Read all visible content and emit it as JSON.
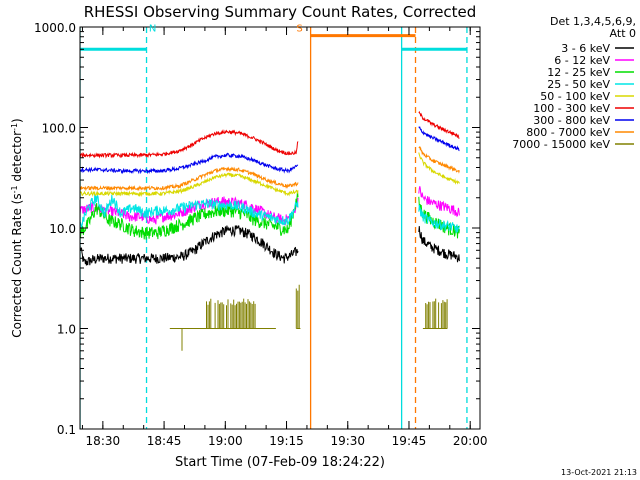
{
  "chart_data": {
    "type": "line",
    "title": "RHESSI Observing Summary Count Rates, Corrected",
    "xlabel": "Start Time (07-Feb-09 18:24:22)",
    "ylabel": "Corrected Count Rate (s⁻¹ detector⁻¹)",
    "ylabel_parts": [
      "Corrected Count Rate (s",
      "-1",
      " detector",
      "-1",
      ")"
    ],
    "yscale": "log",
    "ylim": [
      0.1,
      1000
    ],
    "xlim_minutes": [
      0,
      98
    ],
    "xticks": [
      {
        "minute": 5.6,
        "label": "18:30"
      },
      {
        "minute": 20.6,
        "label": "18:45"
      },
      {
        "minute": 35.6,
        "label": "19:00"
      },
      {
        "minute": 50.6,
        "label": "19:15"
      },
      {
        "minute": 65.6,
        "label": "19:30"
      },
      {
        "minute": 80.6,
        "label": "19:45"
      },
      {
        "minute": 95.6,
        "label": "20:00"
      }
    ],
    "yticks": [
      {
        "value": 0.1,
        "label": "0.1"
      },
      {
        "value": 1,
        "label": "1.0"
      },
      {
        "value": 10,
        "label": "10.0"
      },
      {
        "value": 100,
        "label": "100.0"
      },
      {
        "value": 1000,
        "label": "1000.0"
      }
    ],
    "legend": {
      "placement": "top-right",
      "header": [
        "Det 1,3,4,5,6,9,",
        "Att 0"
      ],
      "entries": [
        {
          "label": "3 - 6 keV",
          "color": "#000000"
        },
        {
          "label": "6 - 12 keV",
          "color": "#ff00ff"
        },
        {
          "label": "12 - 25 keV",
          "color": "#00dd00"
        },
        {
          "label": "25 - 50 keV",
          "color": "#00e5e5"
        },
        {
          "label": "50 - 100 keV",
          "color": "#d8d800"
        },
        {
          "label": "100 - 300 keV",
          "color": "#ee0000"
        },
        {
          "label": "300 - 800 keV",
          "color": "#0000ee"
        },
        {
          "label": "800 - 7000 keV",
          "color": "#ff8800"
        },
        {
          "label": "7000 - 15000 keV",
          "color": "#808000"
        }
      ]
    },
    "series": [
      {
        "name": "3 - 6 keV",
        "color": "#000000",
        "noise": 0.12,
        "segments": [
          {
            "x": [
              0,
              1,
              3,
              5,
              10,
              15,
              20,
              25,
              28,
              30,
              33,
              36,
              39,
              42,
              45,
              48,
              50,
              51.5,
              53.5
            ],
            "y": [
              6.5,
              4.5,
              4.8,
              5,
              5,
              5,
              5,
              5.2,
              6,
              7,
              8.5,
              9.5,
              9.5,
              8.5,
              7,
              5.5,
              5,
              5.3,
              6
            ]
          },
          {
            "x": [
              83,
              84,
              86,
              88,
              90,
              92,
              93
            ],
            "y": [
              10,
              7.5,
              6.5,
              6,
              5.5,
              5.3,
              5
            ]
          }
        ]
      },
      {
        "name": "6 - 12 keV",
        "color": "#ff00ff",
        "noise": 0.12,
        "segments": [
          {
            "x": [
              0,
              3,
              6,
              10,
              12,
              15,
              18,
              20,
              23,
              26,
              29,
              32,
              35,
              38,
              41,
              44,
              47,
              50,
              52,
              53.5
            ],
            "y": [
              15,
              16,
              15,
              14,
              13,
              13,
              12,
              13,
              13.5,
              15,
              17,
              18,
              18.5,
              18,
              17,
              15,
              13,
              12,
              13,
              20
            ]
          },
          {
            "x": [
              83,
              84,
              86,
              88,
              90,
              92,
              93
            ],
            "y": [
              25,
              20,
              18,
              17,
              16,
              15,
              14
            ]
          }
        ]
      },
      {
        "name": "12 - 25 keV",
        "color": "#00dd00",
        "noise": 0.15,
        "segments": [
          {
            "x": [
              0,
              2,
              4,
              7,
              10,
              13,
              16,
              19,
              22,
              25,
              28,
              31,
              34,
              37,
              40,
              43,
              46,
              49,
              51,
              53.5
            ],
            "y": [
              9,
              11,
              16,
              12,
              11,
              9.5,
              9,
              9,
              10,
              11,
              12.5,
              14,
              15,
              15,
              14,
              12,
              11,
              10,
              9.5,
              22
            ]
          },
          {
            "x": [
              83,
              84,
              86,
              88,
              90,
              92,
              93
            ],
            "y": [
              18,
              14,
              12,
              11,
              10,
              9.5,
              9
            ]
          }
        ]
      },
      {
        "name": "25 - 50 keV",
        "color": "#00e5e5",
        "noise": 0.12,
        "segments": [
          {
            "x": [
              0,
              2,
              4,
              6,
              8,
              10,
              13,
              16,
              19,
              22,
              25,
              28,
              31,
              34,
              37,
              40,
              43,
              46,
              49,
              51,
              53.5
            ],
            "y": [
              10,
              16,
              20,
              14,
              20,
              14,
              16,
              14,
              15,
              15,
              16,
              17,
              17.5,
              17,
              17,
              16,
              14,
              13,
              12,
              12,
              18
            ]
          },
          {
            "x": [
              83,
              84,
              86,
              88,
              90,
              92,
              93
            ],
            "y": [
              16,
              13,
              11.5,
              11,
              10.5,
              10,
              9.5
            ]
          }
        ]
      },
      {
        "name": "50 - 100 keV",
        "color": "#d8d800",
        "noise": 0.04,
        "segments": [
          {
            "x": [
              0,
              5,
              10,
              15,
              20,
              24,
              27,
              30,
              33,
              36,
              39,
              42,
              45,
              48,
              51,
              53.5
            ],
            "y": [
              22,
              22,
              22,
              22,
              22,
              23,
              25,
              28,
              32,
              34,
              33,
              30,
              27,
              24,
              22,
              23
            ]
          },
          {
            "x": [
              83,
              84,
              86,
              88,
              90,
              92,
              93
            ],
            "y": [
              55,
              45,
              38,
              34,
              31,
              29,
              28
            ]
          }
        ]
      },
      {
        "name": "100 - 300 keV",
        "color": "#ee0000",
        "noise": 0.04,
        "segments": [
          {
            "x": [
              0,
              5,
              10,
              15,
              20,
              24,
              27,
              30,
              33,
              36,
              39,
              42,
              45,
              48,
              51,
              53,
              53.5
            ],
            "y": [
              53,
              53,
              53,
              53,
              54,
              58,
              66,
              77,
              87,
              91,
              88,
              80,
              70,
              60,
              55,
              56,
              80
            ]
          },
          {
            "x": [
              83,
              84,
              86,
              88,
              90,
              92,
              93
            ],
            "y": [
              140,
              125,
              110,
              100,
              92,
              85,
              80
            ]
          }
        ]
      },
      {
        "name": "300 - 800 keV",
        "color": "#0000ee",
        "noise": 0.04,
        "segments": [
          {
            "x": [
              0,
              5,
              10,
              15,
              20,
              24,
              27,
              30,
              33,
              36,
              39,
              42,
              45,
              48,
              51,
              53.5
            ],
            "y": [
              38,
              38,
              37,
              37,
              37,
              39,
              42,
              46,
              51,
              53,
              52,
              48,
              43,
              39,
              37,
              42
            ]
          },
          {
            "x": [
              83,
              84,
              86,
              88,
              90,
              92,
              93
            ],
            "y": [
              100,
              90,
              80,
              74,
              68,
              63,
              60
            ]
          }
        ]
      },
      {
        "name": "800 - 7000 keV",
        "color": "#ff8800",
        "noise": 0.04,
        "segments": [
          {
            "x": [
              0,
              5,
              10,
              15,
              20,
              24,
              27,
              30,
              33,
              36,
              39,
              42,
              45,
              48,
              51,
              53.5
            ],
            "y": [
              25,
              25,
              25,
              25,
              25,
              26,
              29,
              33,
              37,
              39,
              38,
              35,
              31,
              28,
              26,
              28
            ]
          },
          {
            "x": [
              83,
              84,
              86,
              88,
              90,
              92,
              93
            ],
            "y": [
              65,
              55,
              48,
              44,
              41,
              38,
              36
            ]
          }
        ]
      },
      {
        "name": "7000 - 15000 keV",
        "color": "#808000",
        "style": "spiky",
        "base": 1.0,
        "low": 0.6,
        "segments": [
          {
            "x": [
              22,
              31
            ],
            "spike": 1.0
          },
          {
            "x": [
              31,
              43
            ],
            "spike": 2.0
          },
          {
            "x": [
              43,
              48
            ],
            "spike": 1.0
          },
          {
            "x": [
              53,
              54
            ],
            "spike": 2.8
          }
        ],
        "low_spikes": [
          25
        ],
        "segments2": [
          {
            "x": [
              84,
              90
            ],
            "spike": 2.0
          }
        ]
      }
    ],
    "annotations": [
      {
        "text": "N",
        "color": "#00dddd",
        "minute": 17.8,
        "y": 900
      },
      {
        "text": "S",
        "color": "#ff7700",
        "minute": 53.8,
        "y": 900
      }
    ],
    "intervals": [
      {
        "kind": "night",
        "color": "#00dddd",
        "start_minute": 0,
        "end_minute": 16.3,
        "y": 600
      },
      {
        "kind": "saa",
        "color": "#ff7700",
        "start_minute": 56.5,
        "end_minute": 82.2,
        "y": 820
      },
      {
        "kind": "night",
        "color": "#00dddd",
        "start_minute": 78.8,
        "end_minute": 94.8,
        "y": 600
      }
    ],
    "vertical_markers": [
      {
        "minute": 0,
        "color": "#00dddd",
        "style": "solid"
      },
      {
        "minute": 16.3,
        "color": "#00dddd",
        "style": "dashed"
      },
      {
        "minute": 56.5,
        "color": "#ff7700",
        "style": "solid"
      },
      {
        "minute": 78.8,
        "color": "#00dddd",
        "style": "solid"
      },
      {
        "minute": 82.2,
        "color": "#ff7700",
        "style": "dashed"
      },
      {
        "minute": 94.8,
        "color": "#00dddd",
        "style": "dashed"
      }
    ],
    "timestamp": "13-Oct-2021 21:13"
  }
}
